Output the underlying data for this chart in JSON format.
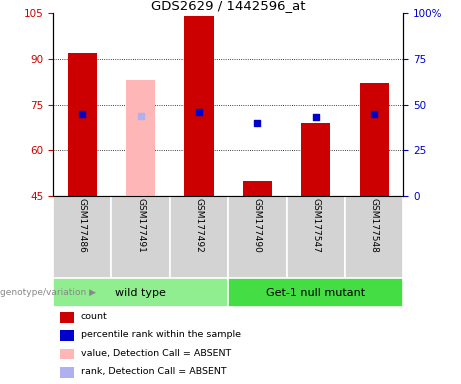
{
  "title": "GDS2629 / 1442596_at",
  "samples": [
    "GSM177486",
    "GSM177491",
    "GSM177492",
    "GSM177490",
    "GSM177547",
    "GSM177548"
  ],
  "red_bars": {
    "GSM177486": 92,
    "GSM177491": null,
    "GSM177492": 104,
    "GSM177490": 50,
    "GSM177547": 69,
    "GSM177548": 82
  },
  "pink_bars": {
    "GSM177491": 83
  },
  "blue_dots_rank": {
    "GSM177486": 45,
    "GSM177492": 46,
    "GSM177490": 40,
    "GSM177547": 43,
    "GSM177548": 45
  },
  "lightblue_dots_rank": {
    "GSM177491": 44
  },
  "red_bar_base": 45,
  "ylim_left": [
    45,
    105
  ],
  "ylim_right": [
    0,
    100
  ],
  "yticks_left": [
    45,
    60,
    75,
    90,
    105
  ],
  "yticks_right": [
    0,
    25,
    50,
    75,
    100
  ],
  "left_tick_color": "#cc0000",
  "right_tick_color": "#0000cc",
  "bar_width": 0.5,
  "dot_size": 18,
  "grid_lines": [
    60,
    75,
    90
  ],
  "wt_color": "#90ee90",
  "mut_color": "#44dd44",
  "sample_box_color": "#d3d3d3",
  "legend_colors": [
    "#cc0000",
    "#0000cc",
    "#ffb6b6",
    "#b0b0f0"
  ],
  "legend_labels": [
    "count",
    "percentile rank within the sample",
    "value, Detection Call = ABSENT",
    "rank, Detection Call = ABSENT"
  ]
}
